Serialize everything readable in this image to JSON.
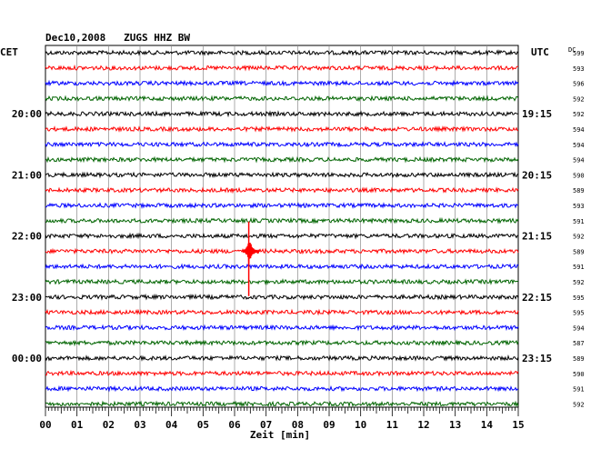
{
  "header": {
    "title": "Dec10,2008   ZUGS HHZ BW",
    "left_zone": "CET",
    "right_zone": "UTC",
    "dc_label": "DC"
  },
  "chart_data": {
    "type": "line",
    "title": "Dec10,2008   ZUGS HHZ BW",
    "xlabel": "Zeit [min]",
    "xlim": [
      0,
      15
    ],
    "x_ticks": [
      "00",
      "01",
      "02",
      "03",
      "04",
      "05",
      "06",
      "07",
      "08",
      "09",
      "10",
      "11",
      "12",
      "13",
      "14",
      "15"
    ],
    "trace_colors": [
      "#000000",
      "#ff0000",
      "#0000ff",
      "#006400"
    ],
    "traces_per_hour": 4,
    "trace_count": 24,
    "left_hour_labels": [
      {
        "trace": 4,
        "text": "20:00"
      },
      {
        "trace": 8,
        "text": "21:00"
      },
      {
        "trace": 12,
        "text": "22:00"
      },
      {
        "trace": 16,
        "text": "23:00"
      },
      {
        "trace": 20,
        "text": "00:00"
      }
    ],
    "right_hour_labels": [
      {
        "trace": 4,
        "text": "19:15"
      },
      {
        "trace": 8,
        "text": "20:15"
      },
      {
        "trace": 12,
        "text": "21:15"
      },
      {
        "trace": 16,
        "text": "22:15"
      },
      {
        "trace": 20,
        "text": "23:15"
      }
    ],
    "dc_values": [
      "599",
      "593",
      "596",
      "592",
      "592",
      "594",
      "594",
      "594",
      "590",
      "589",
      "593",
      "591",
      "592",
      "589",
      "591",
      "592",
      "595",
      "595",
      "594",
      "587",
      "589",
      "590",
      "591",
      "592"
    ],
    "event": {
      "trace": 13,
      "minute": 6.45
    }
  }
}
